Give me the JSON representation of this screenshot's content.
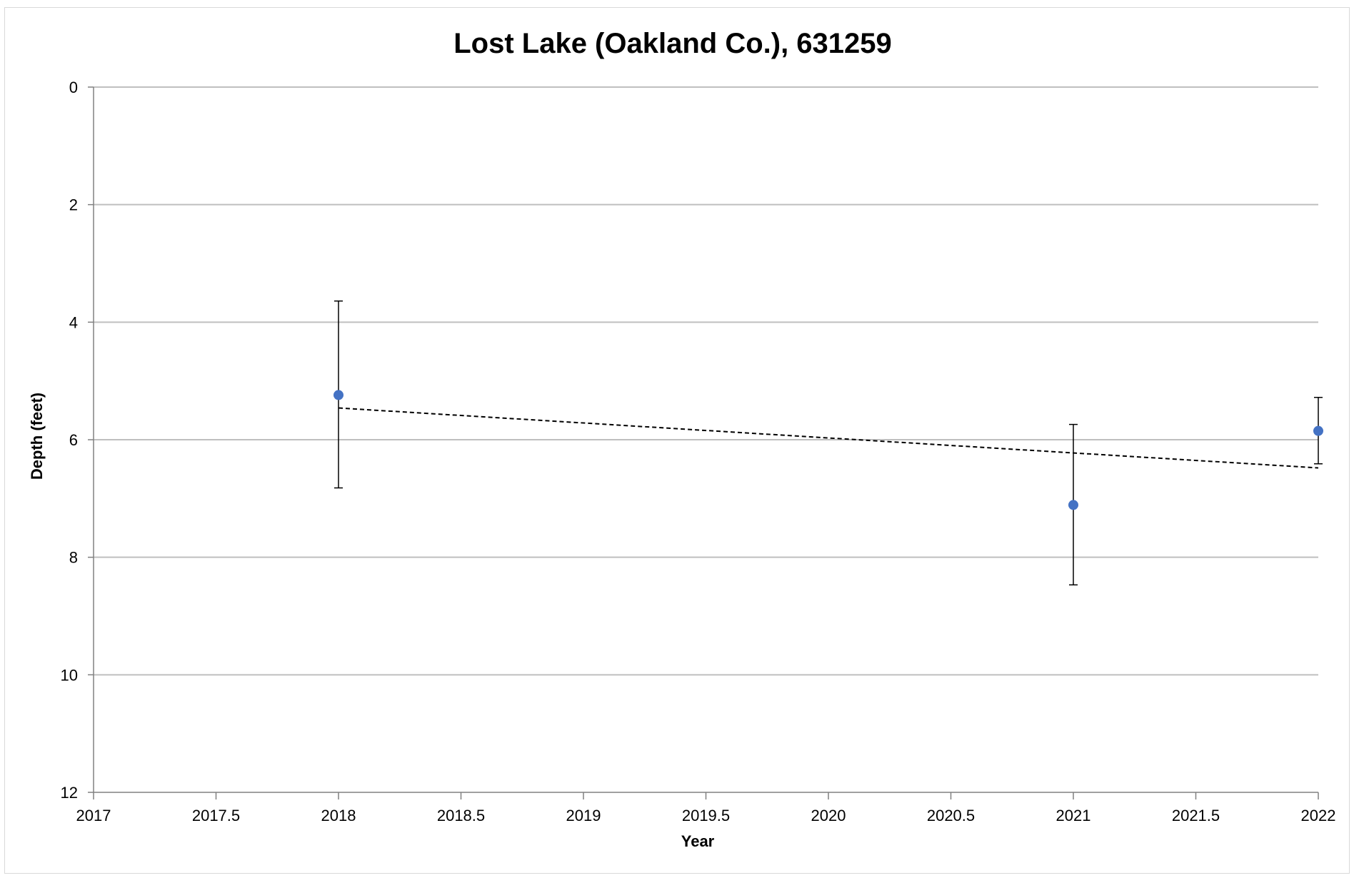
{
  "chart_data": {
    "type": "scatter",
    "title": "Lost Lake (Oakland Co.), 631259",
    "xlabel": "Year",
    "ylabel": "Depth (feet)",
    "xlim": [
      2017,
      2022
    ],
    "ylim": [
      0,
      12
    ],
    "y_axis_reversed": true,
    "x_ticks": [
      "2017",
      "2017.5",
      "2018",
      "2018.5",
      "2019",
      "2019.5",
      "2020",
      "2020.5",
      "2021",
      "2021.5",
      "2022"
    ],
    "y_ticks": [
      "0",
      "2",
      "4",
      "6",
      "8",
      "10",
      "12"
    ],
    "grid": "horizontal",
    "legend": "none",
    "series": [
      {
        "points": [
          {
            "x": 2018,
            "y": 5.24,
            "err_low": 3.64,
            "err_high": 6.82
          },
          {
            "x": 2021,
            "y": 7.11,
            "err_low": 5.74,
            "err_high": 8.47
          },
          {
            "x": 2022,
            "y": 5.85,
            "err_low": 5.28,
            "err_high": 6.41
          }
        ],
        "color": "#4472c4"
      }
    ],
    "trendline": {
      "type": "linear",
      "x": [
        2018,
        2022
      ],
      "y": [
        5.46,
        6.48
      ],
      "style": "dashed",
      "color": "#000000"
    },
    "colors": {
      "grid": "#bfbfbf",
      "axis": "#808080",
      "errorbar": "#000000"
    }
  }
}
